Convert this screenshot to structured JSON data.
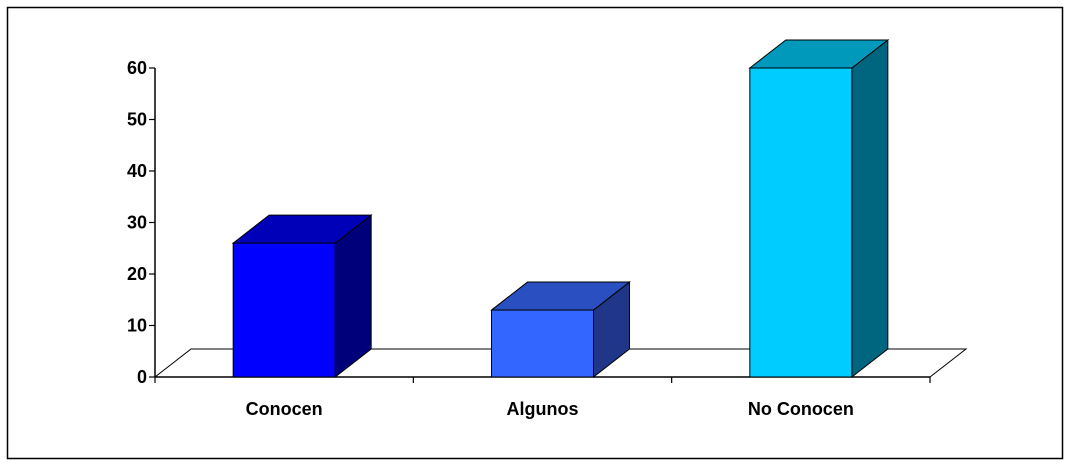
{
  "chart_data": {
    "type": "bar",
    "three_d": true,
    "categories": [
      "Conocen",
      "Algunos",
      "No Conocen"
    ],
    "values": [
      26,
      13,
      60
    ],
    "title": "",
    "xlabel": "",
    "ylabel": "",
    "ylim": [
      0,
      60
    ],
    "yticks": [
      0,
      10,
      20,
      30,
      40,
      50,
      60
    ],
    "grid": false,
    "legend": "none",
    "colors": [
      {
        "front": "#0000ff",
        "top": "#0000b8",
        "side": "#00007a"
      },
      {
        "front": "#3366ff",
        "top": "#2a4fc0",
        "side": "#1f3689"
      },
      {
        "front": "#00ccff",
        "top": "#0099bb",
        "side": "#006680"
      }
    ],
    "frame_color": "#000000"
  }
}
